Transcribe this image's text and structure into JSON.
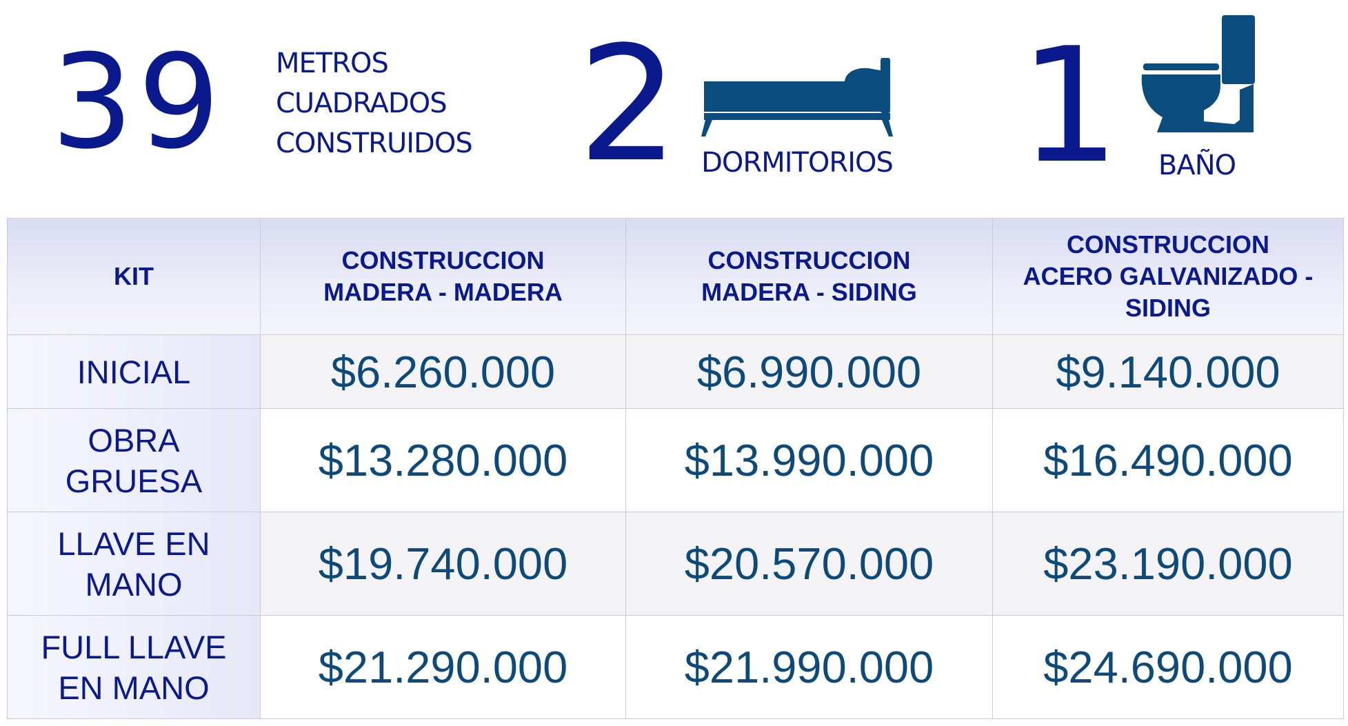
{
  "stats": {
    "area": {
      "value": "39",
      "label_lines": [
        "METROS",
        "CUADRADOS",
        "CONSTRUIDOS"
      ]
    },
    "bedrooms": {
      "value": "2",
      "label": "DORMITORIOS",
      "icon": "bed-icon"
    },
    "bathrooms": {
      "value": "1",
      "label": "BAÑO",
      "icon": "toilet-icon"
    }
  },
  "table": {
    "header": {
      "kit": "KIT",
      "columns": [
        [
          "CONSTRUCCION",
          "MADERA - MADERA"
        ],
        [
          "CONSTRUCCION",
          "MADERA - SIDING"
        ],
        [
          "CONSTRUCCION",
          "ACERO GALVANIZADO -",
          "SIDING"
        ]
      ]
    },
    "rows": [
      {
        "kit_lines": [
          "INICIAL"
        ],
        "prices": [
          "$6.260.000",
          "$6.990.000",
          "$9.140.000"
        ]
      },
      {
        "kit_lines": [
          "OBRA",
          "GRUESA"
        ],
        "prices": [
          "$13.280.000",
          "$13.990.000",
          "$16.490.000"
        ]
      },
      {
        "kit_lines": [
          "LLAVE EN",
          "MANO"
        ],
        "prices": [
          "$19.740.000",
          "$20.570.000",
          "$23.190.000"
        ]
      },
      {
        "kit_lines": [
          "FULL LLAVE",
          "EN MANO"
        ],
        "prices": [
          "$21.290.000",
          "$21.990.000",
          "$24.690.000"
        ]
      }
    ]
  },
  "colors": {
    "heading_blue": "#0a1a8c",
    "price_blue": "#0d4a7a",
    "icon_blue": "#0b4d7e"
  }
}
